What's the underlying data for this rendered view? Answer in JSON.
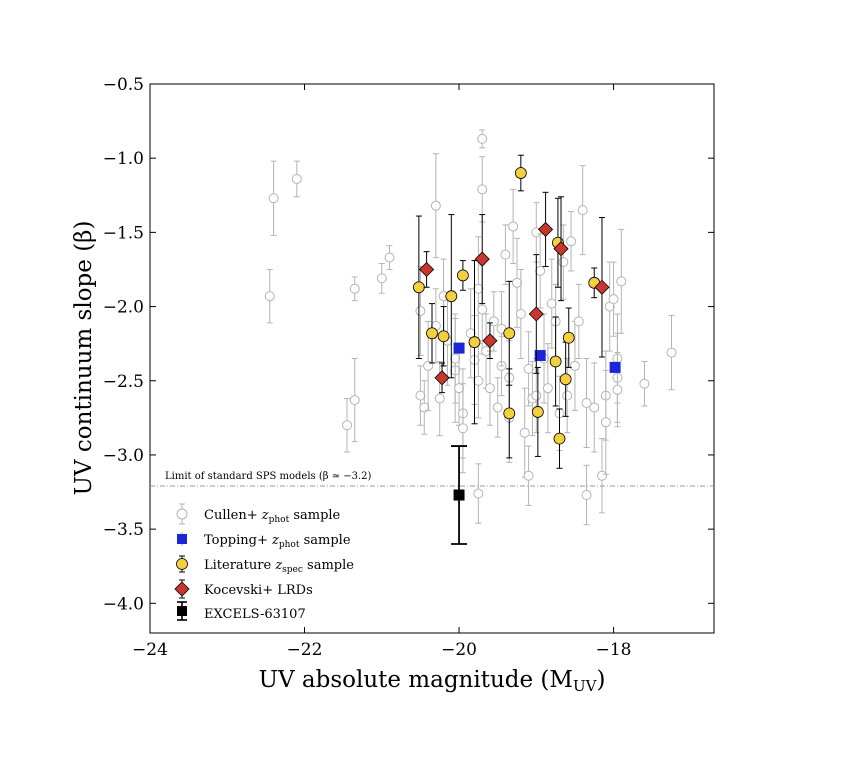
{
  "chart_data": {
    "type": "scatter",
    "xlabel": "UV absolute magnitude (M",
    "xlabel_sub": "UV",
    "xlabel_close": ")",
    "ylabel": "UV continuum slope (β)",
    "xlim": [
      -24,
      -16.7
    ],
    "ylim": [
      -4.2,
      -0.5
    ],
    "x_ticks": [
      -24,
      -22,
      -20,
      -18
    ],
    "x_tick_labels": [
      "−24",
      "−22",
      "−20",
      "−18"
    ],
    "y_ticks": [
      -0.5,
      -1.0,
      -1.5,
      -2.0,
      -2.5,
      -3.0,
      -3.5,
      -4.0
    ],
    "y_tick_labels": [
      "−0.5",
      "−1.0",
      "−1.5",
      "−2.0",
      "−2.5",
      "−3.0",
      "−3.5",
      "−4.0"
    ],
    "reference_line": {
      "y": -3.2,
      "label": "Limit of standard SPS models (β ≃ −3.2)"
    },
    "legend_position": "lower-left",
    "series": [
      {
        "name": "Cullen+ z_phot sample",
        "legend_label": "Cullen+ ",
        "legend_math": "z",
        "legend_sub": "phot",
        "legend_rest": " sample",
        "marker": "open-circle",
        "color": "#b4b4b4",
        "points": [
          {
            "x": -22.4,
            "y": -1.27,
            "err": 0.25
          },
          {
            "x": -22.45,
            "y": -1.93,
            "err": 0.18
          },
          {
            "x": -22.1,
            "y": -1.14,
            "err": 0.12
          },
          {
            "x": -21.45,
            "y": -2.8,
            "err": 0.18
          },
          {
            "x": -21.35,
            "y": -2.63,
            "err": 0.28
          },
          {
            "x": -21.35,
            "y": -1.88,
            "err": 0.08
          },
          {
            "x": -21.0,
            "y": -1.81,
            "err": 0.1
          },
          {
            "x": -20.9,
            "y": -1.67,
            "err": 0.08
          },
          {
            "x": -20.5,
            "y": -2.03,
            "err": 0.3
          },
          {
            "x": -20.5,
            "y": -2.6,
            "err": 0.2
          },
          {
            "x": -20.45,
            "y": -2.68,
            "err": 0.18
          },
          {
            "x": -20.4,
            "y": -2.4,
            "err": 0.3
          },
          {
            "x": -20.3,
            "y": -2.13,
            "err": 0.25
          },
          {
            "x": -20.3,
            "y": -1.32,
            "err": 0.35
          },
          {
            "x": -20.25,
            "y": -2.62,
            "err": 0.25
          },
          {
            "x": -20.2,
            "y": -1.93,
            "err": 0.25
          },
          {
            "x": -20.15,
            "y": -2.23,
            "err": 0.3
          },
          {
            "x": -20.05,
            "y": -2.43,
            "err": 0.35
          },
          {
            "x": -20.05,
            "y": -2.35,
            "err": 0.3
          },
          {
            "x": -20.0,
            "y": -2.55,
            "err": 0.25
          },
          {
            "x": -19.95,
            "y": -2.72,
            "err": 0.3
          },
          {
            "x": -19.95,
            "y": -2.82,
            "err": 0.3
          },
          {
            "x": -19.85,
            "y": -2.18,
            "err": 0.3
          },
          {
            "x": -19.8,
            "y": -2.36,
            "err": 0.3
          },
          {
            "x": -19.75,
            "y": -2.5,
            "err": 0.25
          },
          {
            "x": -19.75,
            "y": -1.88,
            "err": 0.35
          },
          {
            "x": -19.7,
            "y": -0.87,
            "err": 0.06
          },
          {
            "x": -19.7,
            "y": -1.21,
            "err": 0.22
          },
          {
            "x": -19.7,
            "y": -2.02,
            "err": 0.3
          },
          {
            "x": -19.65,
            "y": -2.3,
            "err": 0.25
          },
          {
            "x": -19.6,
            "y": -2.55,
            "err": 0.25
          },
          {
            "x": -19.55,
            "y": -2.1,
            "err": 0.2
          },
          {
            "x": -19.5,
            "y": -2.68,
            "err": 0.2
          },
          {
            "x": -19.45,
            "y": -2.4,
            "err": 0.2
          },
          {
            "x": -19.4,
            "y": -1.65,
            "err": 0.2
          },
          {
            "x": -19.35,
            "y": -2.48,
            "err": 0.25
          },
          {
            "x": -19.3,
            "y": -1.46,
            "err": 0.25
          },
          {
            "x": -19.25,
            "y": -1.84,
            "err": 0.3
          },
          {
            "x": -19.2,
            "y": -2.05,
            "err": 0.3
          },
          {
            "x": -19.15,
            "y": -2.85,
            "err": 0.3
          },
          {
            "x": -19.1,
            "y": -2.42,
            "err": 0.25
          },
          {
            "x": -19.1,
            "y": -3.14,
            "err": 0.2
          },
          {
            "x": -19.05,
            "y": -2.62,
            "err": 0.25
          },
          {
            "x": -19.0,
            "y": -2.6,
            "err": 0.25
          },
          {
            "x": -19.0,
            "y": -1.5,
            "err": 0.2
          },
          {
            "x": -18.95,
            "y": -1.76,
            "err": 0.25
          },
          {
            "x": -18.9,
            "y": -2.35,
            "err": 0.3
          },
          {
            "x": -18.85,
            "y": -2.55,
            "err": 0.3
          },
          {
            "x": -18.8,
            "y": -1.98,
            "err": 0.3
          },
          {
            "x": -18.75,
            "y": -2.1,
            "err": 0.25
          },
          {
            "x": -18.7,
            "y": -2.72,
            "err": 0.25
          },
          {
            "x": -18.65,
            "y": -1.7,
            "err": 0.25
          },
          {
            "x": -18.6,
            "y": -2.6,
            "err": 0.25
          },
          {
            "x": -18.55,
            "y": -1.56,
            "err": 0.2
          },
          {
            "x": -18.5,
            "y": -2.4,
            "err": 0.3
          },
          {
            "x": -18.45,
            "y": -2.1,
            "err": 0.25
          },
          {
            "x": -18.4,
            "y": -1.35,
            "err": 0.3
          },
          {
            "x": -18.35,
            "y": -2.65,
            "err": 0.3
          },
          {
            "x": -18.35,
            "y": -3.27,
            "err": 0.2
          },
          {
            "x": -18.25,
            "y": -2.68,
            "err": 0.3
          },
          {
            "x": -18.15,
            "y": -3.14,
            "err": 0.25
          },
          {
            "x": -18.1,
            "y": -2.6,
            "err": 0.3
          },
          {
            "x": -18.1,
            "y": -2.78,
            "err": 0.35
          },
          {
            "x": -18.05,
            "y": -2.0,
            "err": 0.3
          },
          {
            "x": -18.0,
            "y": -1.95,
            "err": 0.25
          },
          {
            "x": -17.95,
            "y": -2.35,
            "err": 0.3
          },
          {
            "x": -17.95,
            "y": -2.48,
            "err": 0.3
          },
          {
            "x": -17.9,
            "y": -1.83,
            "err": 0.35
          },
          {
            "x": -17.95,
            "y": -2.56,
            "err": 0.25
          },
          {
            "x": -17.6,
            "y": -2.52,
            "err": 0.15
          },
          {
            "x": -17.25,
            "y": -2.31,
            "err": 0.25
          },
          {
            "x": -19.75,
            "y": -3.26,
            "err": 0.2
          },
          {
            "x": -19.45,
            "y": -2.15,
            "err": 0.25
          },
          {
            "x": -19.35,
            "y": -2.75,
            "err": 0.3
          }
        ]
      },
      {
        "name": "Topping+ z_phot sample",
        "legend_label": "Topping+ ",
        "legend_math": "z",
        "legend_sub": "phot",
        "legend_rest": " sample",
        "marker": "square",
        "color": "#1b24d6",
        "points": [
          {
            "x": -20.0,
            "y": -2.28,
            "err": 0.03
          },
          {
            "x": -18.95,
            "y": -2.33,
            "err": 0.03
          },
          {
            "x": -17.98,
            "y": -2.41,
            "err": 0.03
          }
        ]
      },
      {
        "name": "Literature z_spec sample",
        "legend_label": "Literature ",
        "legend_math": "z",
        "legend_sub": "spec",
        "legend_rest": " sample",
        "marker": "circle",
        "color": "#f3d03e",
        "points": [
          {
            "x": -20.52,
            "y": -1.87,
            "err": 0.48
          },
          {
            "x": -20.35,
            "y": -2.18,
            "err": 0.2
          },
          {
            "x": -20.2,
            "y": -2.2,
            "err": 0.2
          },
          {
            "x": -20.1,
            "y": -1.93,
            "err": 0.55
          },
          {
            "x": -19.95,
            "y": -1.79,
            "err": 0.1
          },
          {
            "x": -19.8,
            "y": -2.24,
            "err": 0.55
          },
          {
            "x": -19.35,
            "y": -2.72,
            "err": 0.3
          },
          {
            "x": -19.35,
            "y": -2.18,
            "err": 0.35
          },
          {
            "x": -19.2,
            "y": -1.1,
            "err": 0.12
          },
          {
            "x": -18.98,
            "y": -2.71,
            "err": 0.3
          },
          {
            "x": -18.75,
            "y": -2.37,
            "err": 0.3
          },
          {
            "x": -18.72,
            "y": -1.57,
            "err": 0.3
          },
          {
            "x": -18.7,
            "y": -2.89,
            "err": 0.2
          },
          {
            "x": -18.62,
            "y": -2.49,
            "err": 0.25
          },
          {
            "x": -18.58,
            "y": -2.21,
            "err": 0.2
          },
          {
            "x": -18.25,
            "y": -1.84,
            "err": 0.1
          }
        ]
      },
      {
        "name": "Kocevski+ LRDs",
        "legend_label": "Kocevski+ LRDs",
        "marker": "diamond",
        "color": "#c8372d",
        "points": [
          {
            "x": -20.42,
            "y": -1.75,
            "err": 0.12
          },
          {
            "x": -20.22,
            "y": -2.48,
            "err": 0.1
          },
          {
            "x": -19.7,
            "y": -1.68,
            "err": 0.3
          },
          {
            "x": -19.6,
            "y": -2.23,
            "err": 0.12
          },
          {
            "x": -19.0,
            "y": -2.05,
            "err": 0.4
          },
          {
            "x": -18.88,
            "y": -1.48,
            "err": 0.25
          },
          {
            "x": -18.68,
            "y": -1.61,
            "err": 0.35
          },
          {
            "x": -18.15,
            "y": -1.87,
            "err": 0.47
          }
        ]
      },
      {
        "name": "EXCELS-63107",
        "legend_label": "EXCELS-63107",
        "marker": "square",
        "color": "#000000",
        "points": [
          {
            "x": -20.0,
            "y": -3.27,
            "err": 0.33
          }
        ]
      }
    ]
  }
}
